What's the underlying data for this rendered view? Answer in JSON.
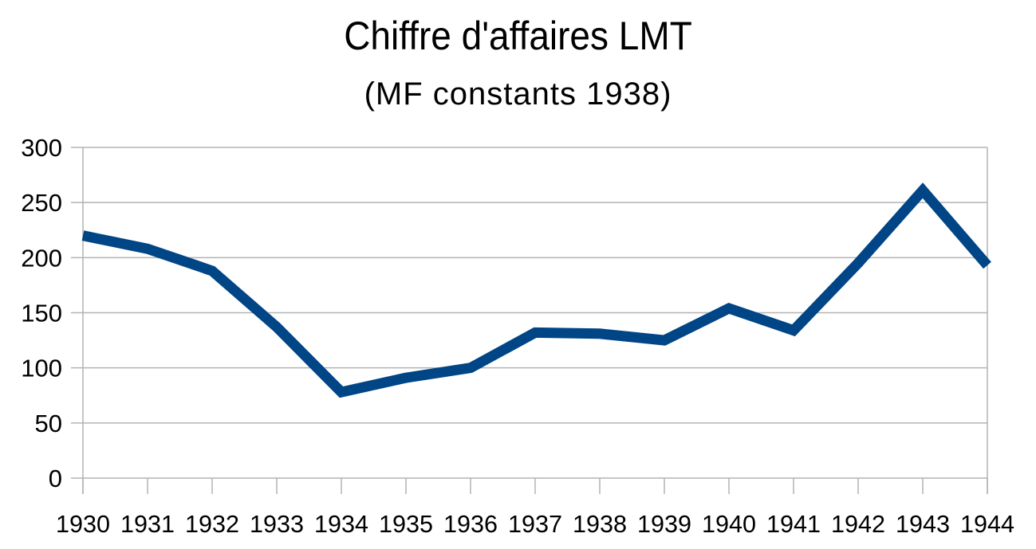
{
  "chart_data": {
    "type": "line",
    "title": "Chiffre d'affaires LMT",
    "subtitle": "(MF constants 1938)",
    "xlabel": "",
    "ylabel": "",
    "categories": [
      "1930",
      "1931",
      "1932",
      "1933",
      "1934",
      "1935",
      "1936",
      "1937",
      "1938",
      "1939",
      "1940",
      "1941",
      "1942",
      "1943",
      "1944"
    ],
    "series": [
      {
        "name": "Chiffre d'affaires",
        "color": "#004586",
        "values": [
          220,
          208,
          188,
          137,
          78,
          91,
          100,
          132,
          131,
          125,
          154,
          134,
          195,
          261,
          193
        ]
      }
    ],
    "ylim": [
      0,
      300
    ],
    "yticks": [
      0,
      50,
      100,
      150,
      200,
      250,
      300
    ],
    "grid": true,
    "legend": "none"
  }
}
